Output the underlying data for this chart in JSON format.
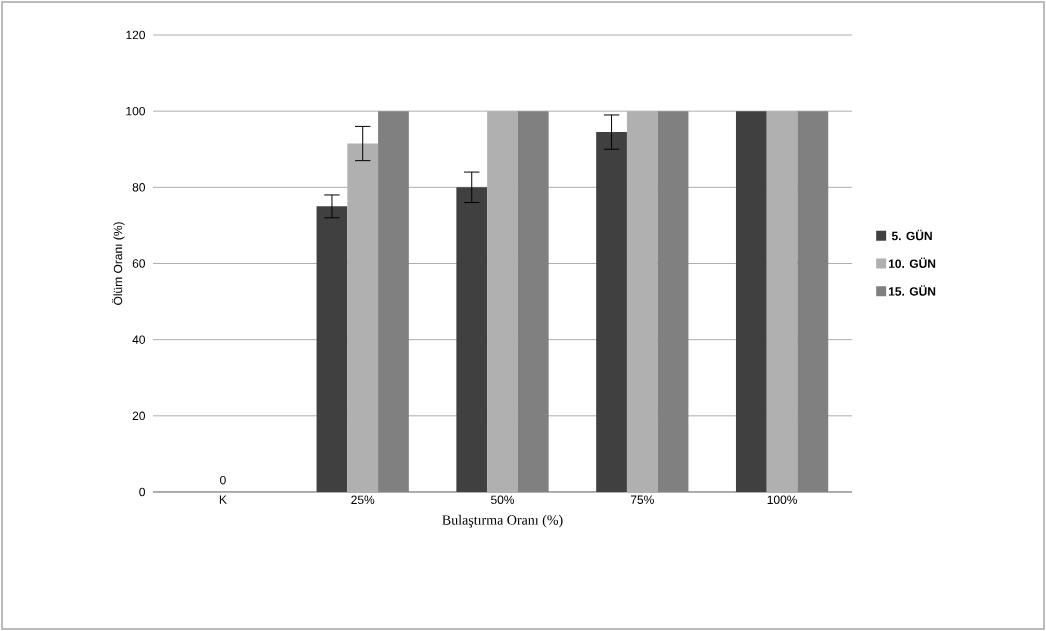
{
  "chart_data": {
    "type": "bar",
    "xlabel": "Bulaştırma Oranı (%)",
    "ylabel": "Ölüm Oranı (%)",
    "categories": [
      "K",
      "25%",
      "50%",
      "75%",
      "100%"
    ],
    "series": [
      {
        "name": "5. GÜN",
        "color": "#404040",
        "values": [
          0,
          75,
          80,
          94.5,
          100
        ],
        "errors": [
          null,
          3,
          4,
          4.5,
          null
        ]
      },
      {
        "name": "10. GÜN",
        "color": "#b0b0b0",
        "values": [
          0,
          91.5,
          100,
          100,
          100
        ],
        "errors": [
          null,
          4.5,
          null,
          null,
          null
        ],
        "value_labels": [
          "0",
          null,
          null,
          null,
          null
        ]
      },
      {
        "name": "15. GÜN",
        "color": "#808080",
        "values": [
          0,
          100,
          100,
          100,
          100
        ]
      }
    ],
    "ylim": [
      0,
      120
    ],
    "yticks": [
      0,
      20,
      40,
      60,
      80,
      100,
      120
    ],
    "grid": "y",
    "legend": "right"
  }
}
